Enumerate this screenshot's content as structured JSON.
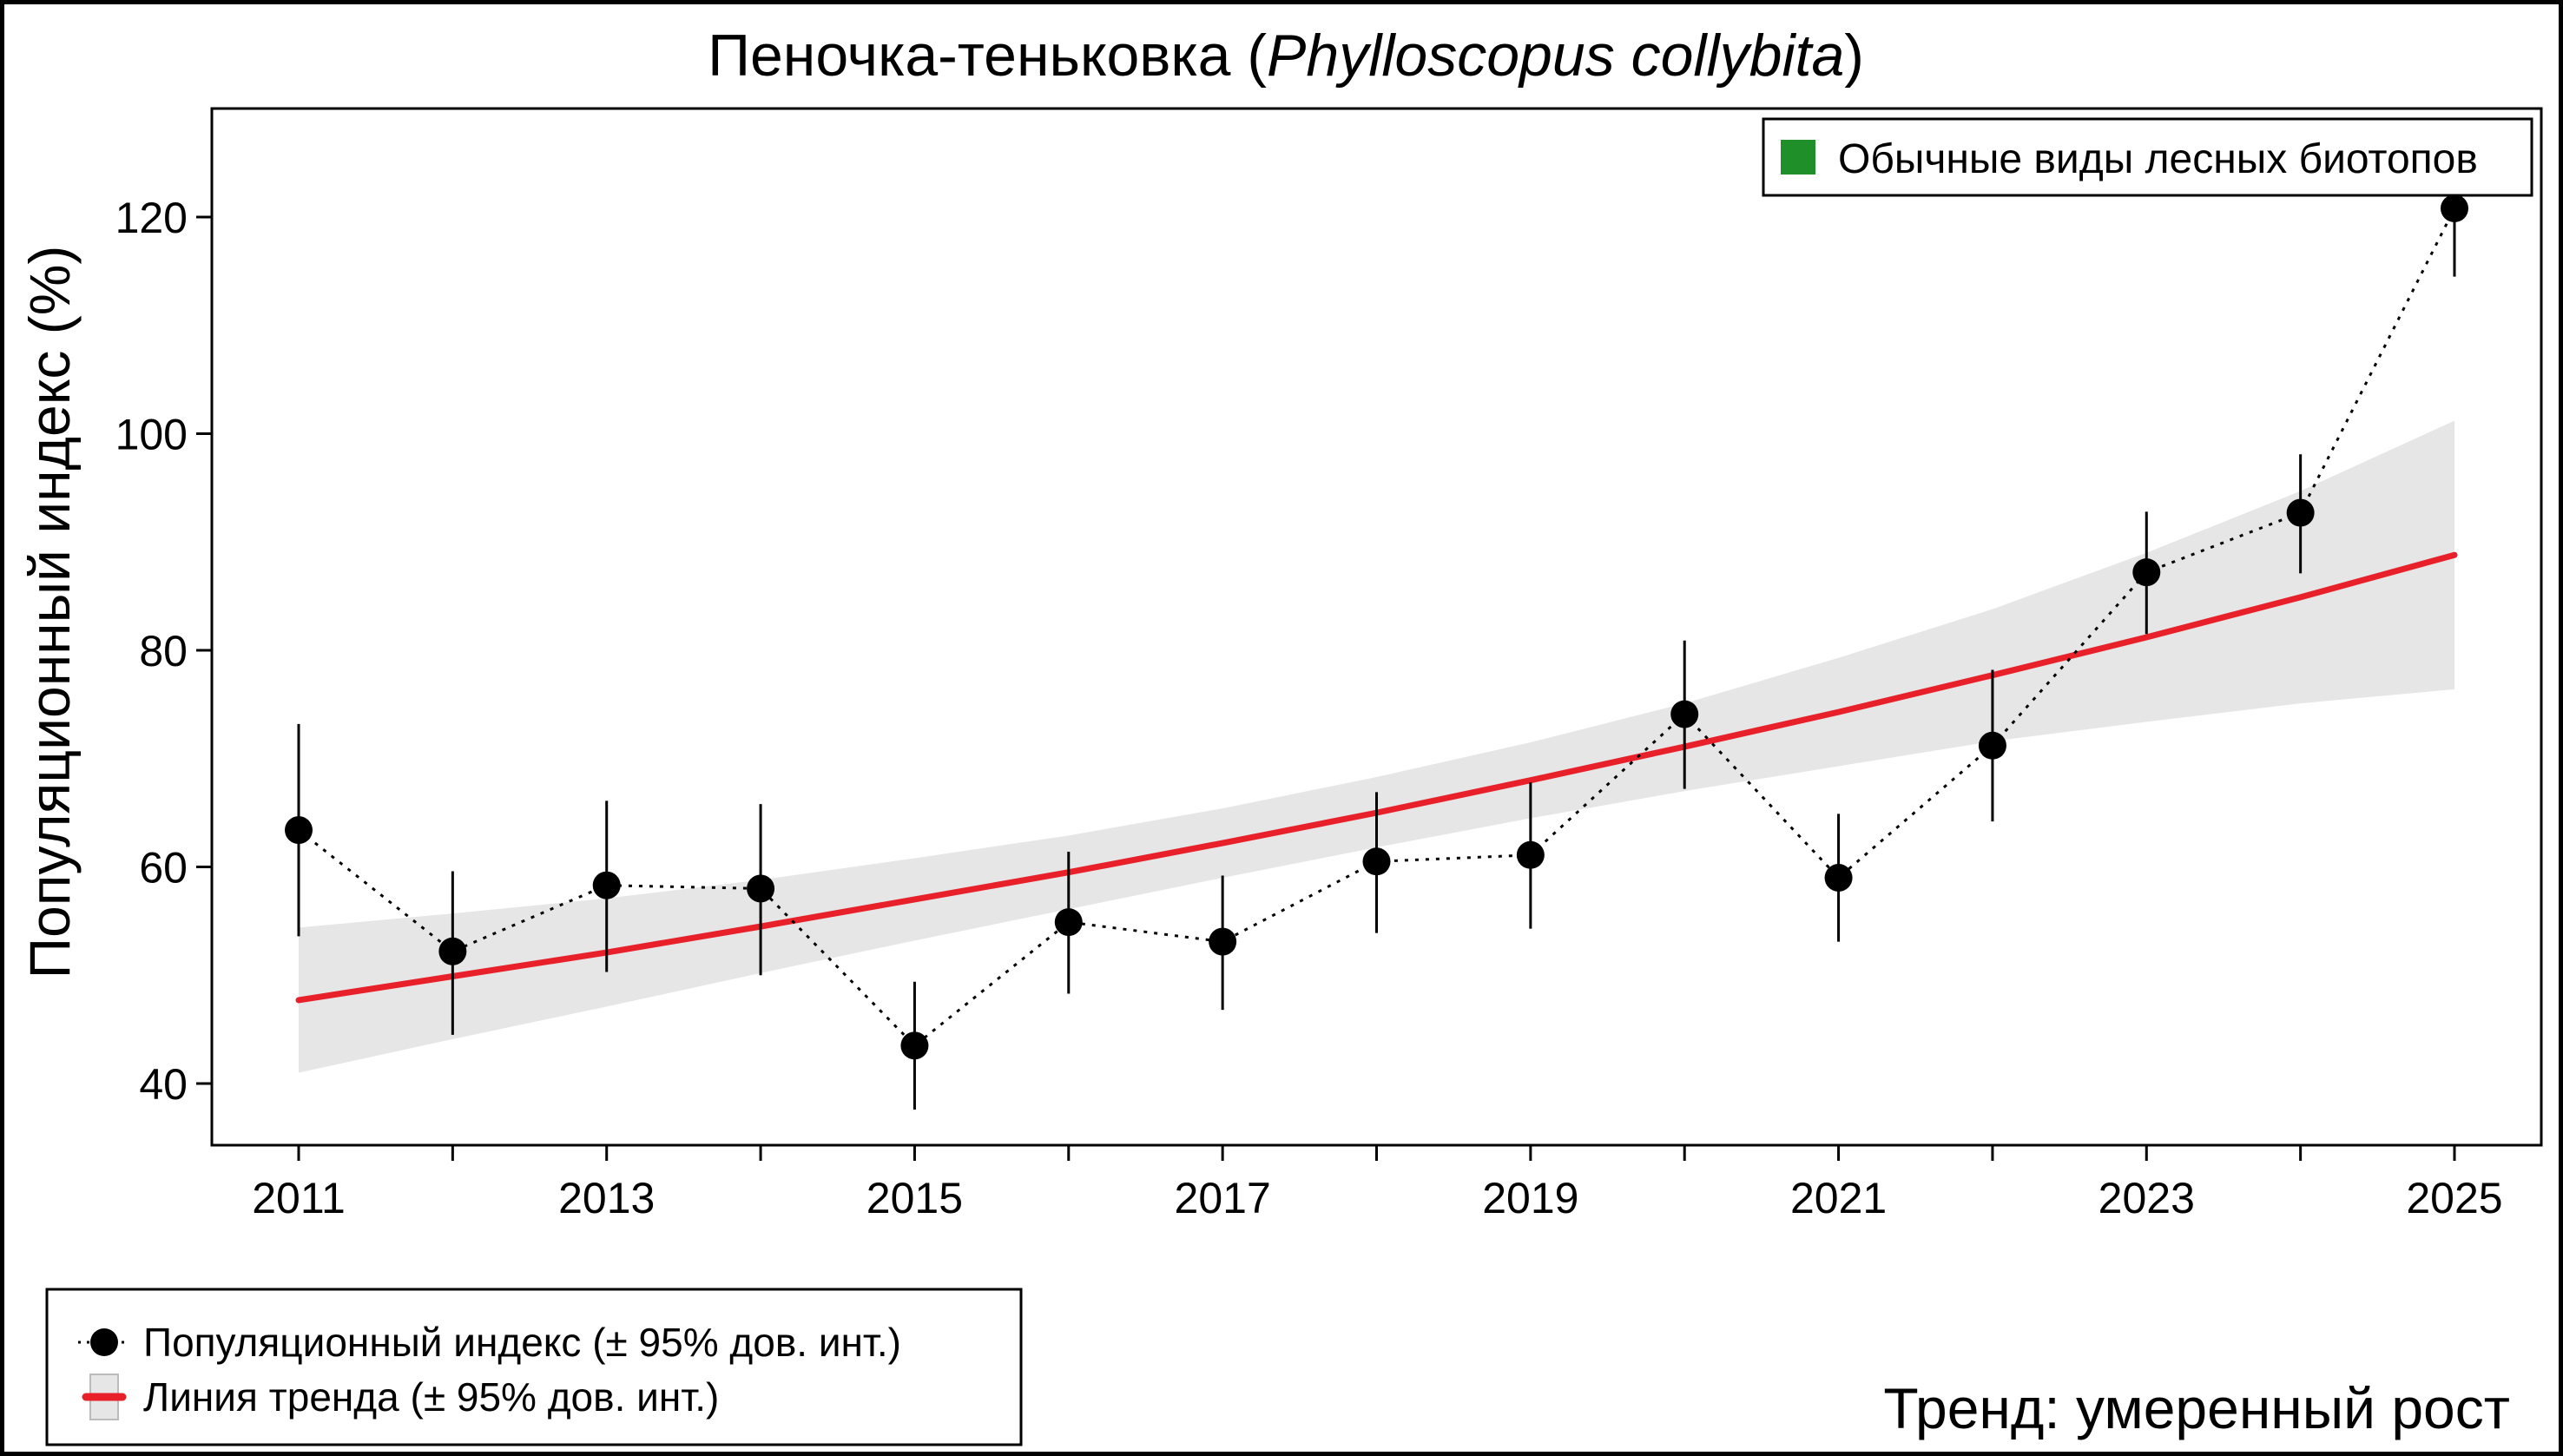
{
  "chart_data": {
    "type": "line",
    "title": "Пеночка-теньковка",
    "title_latin": "Phylloscopus collybita",
    "ylabel": "Популяционный индекс (%)",
    "xlabel": "",
    "ylim": [
      34,
      130
    ],
    "xlim": [
      2010.45,
      2025.55
    ],
    "yticks": [
      40,
      60,
      80,
      100,
      120
    ],
    "xtick_labels": [
      2011,
      2013,
      2015,
      2017,
      2019,
      2021,
      2023,
      2025
    ],
    "grid": false,
    "x": [
      2011,
      2012,
      2013,
      2014,
      2015,
      2016,
      2017,
      2018,
      2019,
      2020,
      2021,
      2022,
      2023,
      2024,
      2025
    ],
    "series": [
      {
        "name": "Популяционный индекс (± 95% дов. инт.)",
        "style": "points-dotted",
        "color": "#000000",
        "values": [
          63.4,
          52.2,
          58.3,
          58.0,
          43.5,
          54.9,
          53.1,
          60.5,
          61.1,
          74.1,
          59.0,
          71.2,
          87.2,
          92.7,
          120.8
        ],
        "ci_lower": [
          53.6,
          44.5,
          50.3,
          50.0,
          37.6,
          48.3,
          46.8,
          53.9,
          54.3,
          67.2,
          53.1,
          64.2,
          81.5,
          87.1,
          114.5
        ],
        "ci_upper": [
          73.2,
          59.6,
          66.1,
          65.8,
          49.4,
          61.4,
          59.2,
          66.9,
          67.8,
          80.9,
          64.9,
          78.2,
          92.8,
          98.1,
          126.0
        ]
      },
      {
        "name": "Линия тренда (± 95% дов. инт.)",
        "style": "line-band",
        "color": "#e8202a",
        "band_color": "#e6e6e6",
        "values": [
          47.7,
          49.9,
          52.1,
          54.5,
          57.0,
          59.5,
          62.2,
          65.0,
          68.0,
          71.1,
          74.3,
          77.7,
          81.2,
          84.9,
          88.8
        ],
        "ci_lower": [
          41.0,
          44.1,
          47.1,
          50.2,
          53.2,
          56.1,
          59.0,
          61.8,
          64.5,
          67.0,
          69.3,
          71.6,
          73.4,
          75.1,
          76.4
        ],
        "ci_upper": [
          54.4,
          55.7,
          57.1,
          58.8,
          60.8,
          62.9,
          65.4,
          68.3,
          71.5,
          75.1,
          79.3,
          83.8,
          89.0,
          94.7,
          101.2
        ]
      }
    ],
    "legend_top": {
      "label": "Обычные виды лесных биотопов",
      "color": "#1f8f2a",
      "placement": "top-right"
    },
    "legend_bottom": {
      "placement": "bottom-left"
    },
    "annotation": {
      "text": "Тренд: умеренный рост",
      "color": "#0f8a0f",
      "placement": "bottom-right"
    }
  }
}
